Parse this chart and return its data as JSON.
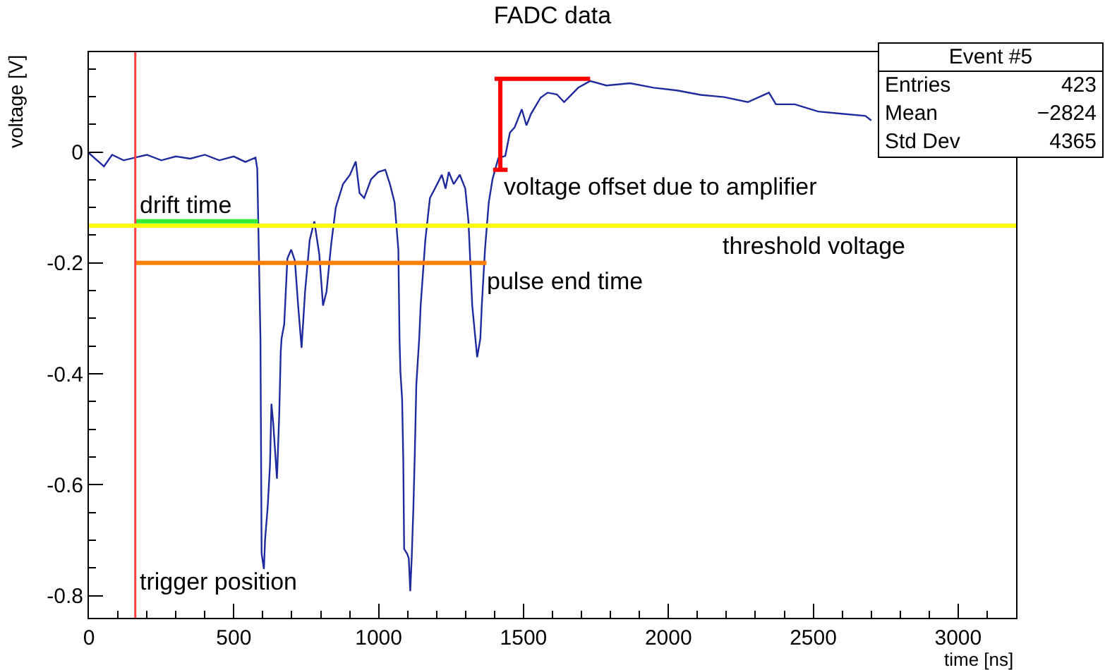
{
  "chart_data": {
    "type": "line",
    "title": "FADC data",
    "xlabel": "time [ns]",
    "ylabel": "voltage [V]",
    "xlim": [
      0,
      3200
    ],
    "xticks": [
      0,
      500,
      1000,
      1500,
      2000,
      2500,
      3000
    ],
    "ylim": [
      -0.84,
      0.18
    ],
    "yticks": [
      -0.8,
      -0.6,
      -0.4,
      -0.2,
      0
    ],
    "grid": false,
    "marker": "none",
    "line_style": "solid",
    "series": [
      {
        "color": "#1f2a9e",
        "x": [
          0,
          52,
          80,
          120,
          160,
          200,
          250,
          300,
          350,
          400,
          450,
          500,
          540,
          575,
          581,
          592,
          596,
          604,
          608,
          617,
          625,
          630,
          636,
          649,
          657,
          662,
          665,
          674,
          685,
          698,
          711,
          722,
          734,
          746,
          762,
          778,
          795,
          808,
          820,
          836,
          852,
          877,
          901,
          921,
          934,
          950,
          974,
          999,
          1023,
          1039,
          1055,
          1068,
          1072,
          1075,
          1081,
          1085,
          1088,
          1098,
          1104,
          1109,
          1114,
          1120,
          1125,
          1130,
          1140,
          1145,
          1161,
          1177,
          1202,
          1218,
          1231,
          1242,
          1259,
          1280,
          1299,
          1310,
          1323,
          1340,
          1351,
          1356,
          1367,
          1380,
          1393,
          1413,
          1437,
          1453,
          1469,
          1494,
          1510,
          1526,
          1559,
          1583,
          1615,
          1640,
          1689,
          1730,
          1786,
          1868,
          1949,
          2030,
          2111,
          2192,
          2274,
          2347,
          2371,
          2436,
          2517,
          2598,
          2680,
          2700
        ],
        "values": [
          -0.002,
          -0.026,
          -0.005,
          -0.015,
          -0.01,
          -0.005,
          -0.015,
          -0.008,
          -0.012,
          -0.005,
          -0.015,
          -0.008,
          -0.018,
          -0.01,
          -0.03,
          -0.336,
          -0.724,
          -0.752,
          -0.699,
          -0.64,
          -0.564,
          -0.454,
          -0.488,
          -0.589,
          -0.471,
          -0.361,
          -0.336,
          -0.311,
          -0.192,
          -0.176,
          -0.196,
          -0.276,
          -0.353,
          -0.252,
          -0.159,
          -0.125,
          -0.184,
          -0.277,
          -0.252,
          -0.167,
          -0.1,
          -0.058,
          -0.041,
          -0.017,
          -0.074,
          -0.083,
          -0.049,
          -0.036,
          -0.032,
          -0.058,
          -0.091,
          -0.176,
          -0.336,
          -0.395,
          -0.446,
          -0.555,
          -0.716,
          -0.724,
          -0.733,
          -0.792,
          -0.733,
          -0.64,
          -0.538,
          -0.42,
          -0.336,
          -0.277,
          -0.159,
          -0.083,
          -0.058,
          -0.041,
          -0.066,
          -0.036,
          -0.058,
          -0.041,
          -0.066,
          -0.125,
          -0.277,
          -0.37,
          -0.336,
          -0.277,
          -0.176,
          -0.091,
          -0.049,
          -0.011,
          -0.007,
          0.035,
          0.044,
          0.077,
          0.048,
          0.069,
          0.098,
          0.107,
          0.104,
          0.09,
          0.116,
          0.128,
          0.12,
          0.124,
          0.116,
          0.111,
          0.103,
          0.099,
          0.09,
          0.107,
          0.086,
          0.086,
          0.073,
          0.069,
          0.065,
          0.057
        ]
      },
      {
        "name": "drift time",
        "color": "#33ee33",
        "x": [
          160,
          584
        ],
        "values": [
          -0.125,
          -0.125
        ]
      },
      {
        "name": "pulse end time",
        "color": "#ff8000",
        "x": [
          160,
          1372
        ],
        "values": [
          -0.2,
          -0.2
        ]
      },
      {
        "name": "voltage offset due to amplifier",
        "color": "#ff0000",
        "x": [
          1730,
          1400,
          1420,
          1420,
          1395,
          1445
        ],
        "values": [
          0.132,
          0.132,
          0.132,
          -0.032,
          -0.032,
          -0.032
        ]
      }
    ],
    "ref_lines": [
      {
        "axis": "x",
        "value": 160,
        "color": "#ff4040",
        "label": "trigger position"
      },
      {
        "axis": "y",
        "value": -0.133,
        "color": "#ffff00",
        "label": "threshold voltage"
      }
    ],
    "annotations": [
      "Event #5",
      "Entries",
      "423",
      "Mean",
      "−2824",
      "Std Dev",
      "4365"
    ]
  }
}
